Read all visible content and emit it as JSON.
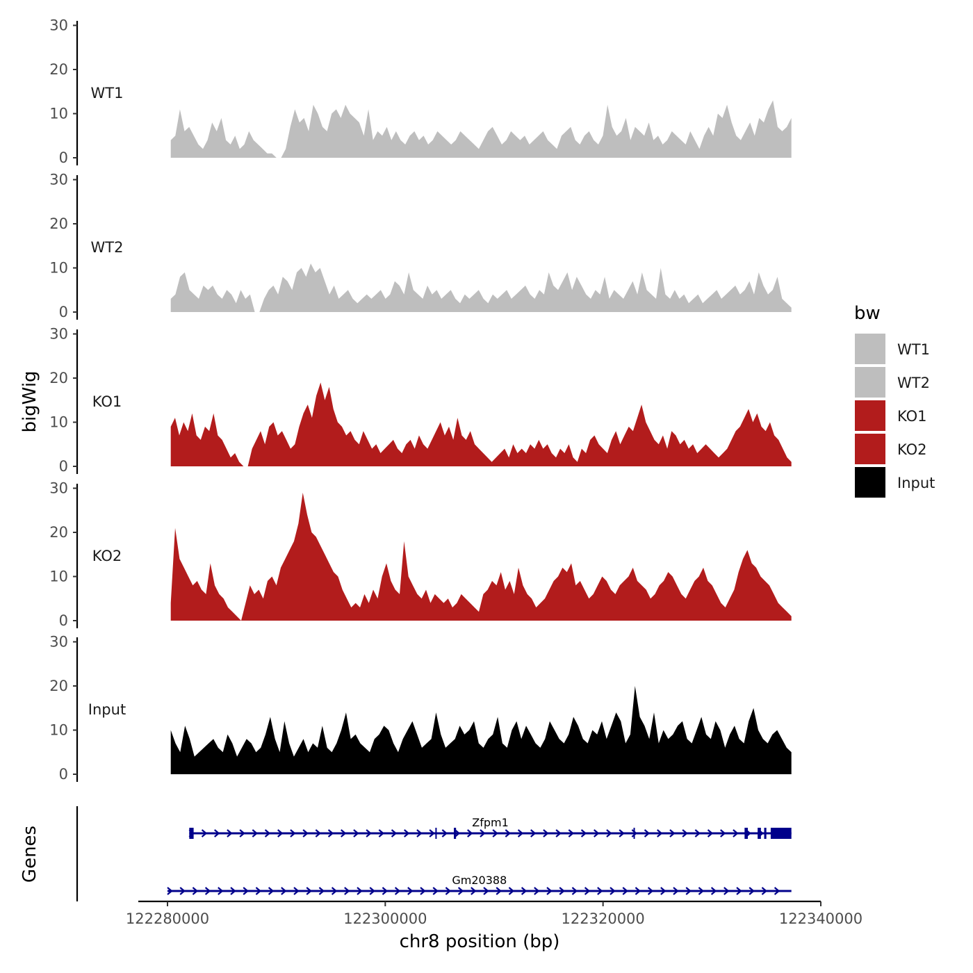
{
  "chart_data": {
    "type": "area",
    "tracks": [
      {
        "name": "WT1",
        "color": "#bebebe",
        "ylim": [
          0,
          30
        ],
        "yticks": [
          0,
          10,
          20,
          30
        ],
        "values": [
          4,
          5,
          11,
          6,
          7,
          5,
          3,
          2,
          4,
          8,
          6,
          9,
          4,
          3,
          5,
          2,
          3,
          6,
          4,
          3,
          2,
          1,
          1,
          0,
          0,
          2,
          7,
          11,
          8,
          9,
          6,
          12,
          10,
          7,
          6,
          10,
          11,
          9,
          12,
          10,
          9,
          8,
          5,
          11,
          4,
          6,
          5,
          7,
          4,
          6,
          4,
          3,
          5,
          6,
          4,
          5,
          3,
          4,
          6,
          5,
          4,
          3,
          4,
          6,
          5,
          4,
          3,
          2,
          4,
          6,
          7,
          5,
          3,
          4,
          6,
          5,
          4,
          5,
          3,
          4,
          5,
          6,
          4,
          3,
          2,
          5,
          6,
          7,
          4,
          3,
          5,
          6,
          4,
          3,
          5,
          12,
          7,
          5,
          6,
          9,
          4,
          7,
          6,
          5,
          8,
          4,
          5,
          3,
          4,
          6,
          5,
          4,
          3,
          6,
          4,
          2,
          5,
          7,
          5,
          10,
          9,
          12,
          8,
          5,
          4,
          6,
          8,
          5,
          9,
          8,
          11,
          13,
          7,
          6,
          7,
          9
        ]
      },
      {
        "name": "WT2",
        "color": "#bebebe",
        "ylim": [
          0,
          30
        ],
        "yticks": [
          0,
          10,
          20,
          30
        ],
        "values": [
          3,
          4,
          8,
          9,
          5,
          4,
          3,
          6,
          5,
          6,
          4,
          3,
          5,
          4,
          2,
          5,
          3,
          4,
          0,
          0,
          3,
          5,
          6,
          4,
          8,
          7,
          5,
          9,
          10,
          8,
          11,
          9,
          10,
          7,
          4,
          6,
          3,
          4,
          5,
          3,
          2,
          3,
          4,
          3,
          4,
          5,
          3,
          4,
          7,
          6,
          4,
          9,
          5,
          4,
          3,
          6,
          4,
          5,
          3,
          4,
          5,
          3,
          2,
          4,
          3,
          4,
          5,
          3,
          2,
          4,
          3,
          4,
          5,
          3,
          4,
          5,
          6,
          4,
          3,
          5,
          4,
          9,
          6,
          5,
          7,
          9,
          5,
          8,
          6,
          4,
          3,
          5,
          4,
          8,
          3,
          5,
          4,
          3,
          5,
          7,
          4,
          9,
          5,
          4,
          3,
          10,
          4,
          3,
          5,
          3,
          4,
          2,
          3,
          4,
          2,
          3,
          4,
          5,
          3,
          4,
          5,
          6,
          4,
          5,
          7,
          4,
          9,
          6,
          4,
          5,
          8,
          3,
          2,
          1
        ]
      },
      {
        "name": "KO1",
        "color": "#b21c1c",
        "ylim": [
          0,
          30
        ],
        "yticks": [
          0,
          10,
          20,
          30
        ],
        "values": [
          9,
          11,
          7,
          10,
          8,
          12,
          7,
          6,
          9,
          8,
          12,
          7,
          6,
          4,
          2,
          3,
          1,
          0,
          0,
          4,
          6,
          8,
          5,
          9,
          10,
          7,
          8,
          6,
          4,
          5,
          9,
          12,
          14,
          11,
          16,
          19,
          15,
          18,
          13,
          10,
          9,
          7,
          8,
          6,
          5,
          8,
          6,
          4,
          5,
          3,
          4,
          5,
          6,
          4,
          3,
          5,
          6,
          4,
          7,
          5,
          4,
          6,
          8,
          10,
          7,
          9,
          6,
          11,
          7,
          6,
          8,
          5,
          4,
          3,
          2,
          1,
          2,
          3,
          4,
          2,
          5,
          3,
          4,
          3,
          5,
          4,
          6,
          4,
          5,
          3,
          2,
          4,
          3,
          5,
          2,
          1,
          4,
          3,
          6,
          7,
          5,
          4,
          3,
          6,
          8,
          5,
          7,
          9,
          8,
          11,
          14,
          10,
          8,
          6,
          5,
          7,
          4,
          8,
          7,
          5,
          6,
          4,
          5,
          3,
          4,
          5,
          4,
          3,
          2,
          3,
          4,
          6,
          8,
          9,
          11,
          13,
          10,
          12,
          9,
          8,
          10,
          7,
          6,
          4,
          2,
          1
        ]
      },
      {
        "name": "KO2",
        "color": "#b21c1c",
        "ylim": [
          0,
          30
        ],
        "yticks": [
          0,
          10,
          20,
          30
        ],
        "values": [
          4,
          21,
          14,
          12,
          10,
          8,
          9,
          7,
          6,
          13,
          8,
          6,
          5,
          3,
          2,
          1,
          0,
          4,
          8,
          6,
          7,
          5,
          9,
          10,
          8,
          12,
          14,
          16,
          18,
          22,
          29,
          24,
          20,
          19,
          17,
          15,
          13,
          11,
          10,
          7,
          5,
          3,
          4,
          3,
          6,
          4,
          7,
          5,
          10,
          13,
          9,
          7,
          6,
          18,
          10,
          8,
          6,
          5,
          7,
          4,
          6,
          5,
          4,
          5,
          3,
          4,
          6,
          5,
          4,
          3,
          2,
          6,
          7,
          9,
          8,
          11,
          7,
          9,
          6,
          12,
          8,
          6,
          5,
          3,
          4,
          5,
          7,
          9,
          10,
          12,
          11,
          13,
          8,
          9,
          7,
          5,
          6,
          8,
          10,
          9,
          7,
          6,
          8,
          9,
          10,
          12,
          9,
          8,
          7,
          5,
          6,
          8,
          9,
          11,
          10,
          8,
          6,
          5,
          7,
          9,
          10,
          12,
          9,
          8,
          6,
          4,
          3,
          5,
          7,
          11,
          14,
          16,
          13,
          12,
          10,
          9,
          8,
          6,
          4,
          3,
          2,
          1
        ]
      },
      {
        "name": "Input",
        "color": "#000000",
        "ylim": [
          0,
          30
        ],
        "yticks": [
          0,
          10,
          20,
          30
        ],
        "values": [
          10,
          7,
          5,
          11,
          8,
          4,
          5,
          6,
          7,
          8,
          6,
          5,
          9,
          7,
          4,
          6,
          8,
          7,
          5,
          6,
          9,
          13,
          8,
          5,
          12,
          7,
          4,
          6,
          8,
          5,
          7,
          6,
          11,
          6,
          5,
          7,
          10,
          14,
          8,
          9,
          7,
          6,
          5,
          8,
          9,
          11,
          10,
          7,
          5,
          8,
          10,
          12,
          9,
          6,
          7,
          8,
          14,
          9,
          6,
          7,
          8,
          11,
          9,
          10,
          12,
          7,
          6,
          8,
          9,
          13,
          7,
          6,
          10,
          12,
          8,
          11,
          9,
          7,
          6,
          8,
          12,
          10,
          8,
          7,
          9,
          13,
          11,
          8,
          7,
          10,
          9,
          12,
          8,
          11,
          14,
          12,
          7,
          9,
          20,
          13,
          11,
          8,
          14,
          7,
          10,
          8,
          9,
          11,
          12,
          8,
          7,
          10,
          13,
          9,
          8,
          12,
          10,
          6,
          9,
          11,
          8,
          7,
          12,
          15,
          10,
          8,
          7,
          9,
          10,
          8,
          6,
          5
        ]
      }
    ],
    "xlabel": "chr8 position (bp)",
    "ylabel": "bigWig",
    "xlim": [
      122280000,
      122340000
    ],
    "xticks": [
      122280000,
      122300000,
      122320000,
      122340000
    ],
    "xtick_labels": [
      "122280000",
      "122300000",
      "122320000",
      "122340000"
    ],
    "signal_range": [
      122280300,
      122337300
    ],
    "legend": {
      "title": "bw",
      "position": "right",
      "entries": [
        {
          "label": "WT1",
          "color": "#bebebe"
        },
        {
          "label": "WT2",
          "color": "#bebebe"
        },
        {
          "label": "KO1",
          "color": "#b21c1c"
        },
        {
          "label": "KO2",
          "color": "#b21c1c"
        },
        {
          "label": "Input",
          "color": "#000000"
        }
      ]
    },
    "genes_panel": {
      "label": "Genes",
      "color": "#00008b",
      "genes": [
        {
          "name": "Zfpm1",
          "start": 122282000,
          "end": 122337300,
          "strand": "+",
          "exons": [
            [
              122282000,
              122282400
            ],
            [
              122304600,
              122304700
            ],
            [
              122306300,
              122306500
            ],
            [
              122322800,
              122322900
            ],
            [
              122333000,
              122333300
            ],
            [
              122334200,
              122334500
            ],
            [
              122334800,
              122335000
            ],
            [
              122335400,
              122337300
            ]
          ]
        },
        {
          "name": "Gm20388",
          "start": 122280000,
          "end": 122337300,
          "strand": "+",
          "exons": []
        }
      ]
    }
  }
}
